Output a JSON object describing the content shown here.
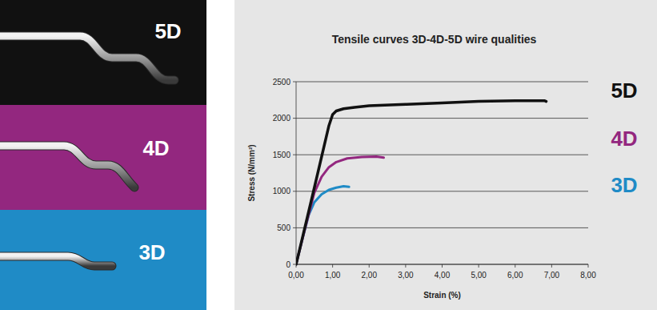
{
  "chart_data": {
    "type": "line",
    "title": "Tensile curves 3D-4D-5D wire qualities",
    "x_label": "Strain (%)",
    "y_label": "Stress (N/mm²)",
    "xlim": [
      0,
      8
    ],
    "ylim": [
      0,
      2500
    ],
    "xticks": [
      {
        "value": 0,
        "label": "0,00"
      },
      {
        "value": 1,
        "label": "1,00"
      },
      {
        "value": 2,
        "label": "2,00"
      },
      {
        "value": 3,
        "label": "3,00"
      },
      {
        "value": 4,
        "label": "4,00"
      },
      {
        "value": 5,
        "label": "5,00"
      },
      {
        "value": 6,
        "label": "6,00"
      },
      {
        "value": 7,
        "label": "7,00"
      },
      {
        "value": 8,
        "label": "8,00"
      }
    ],
    "yticks": [
      0,
      500,
      1000,
      1500,
      2000,
      2500
    ],
    "grid": true,
    "legend": "right",
    "series": [
      {
        "name": "5D",
        "color": "#111111",
        "x": [
          0,
          0.5,
          0.9,
          1.0,
          1.1,
          1.3,
          1.6,
          2.0,
          3.0,
          4.0,
          5.0,
          6.0,
          6.8,
          6.85
        ],
        "values": [
          0,
          1050,
          1900,
          2050,
          2100,
          2130,
          2150,
          2170,
          2190,
          2210,
          2230,
          2240,
          2240,
          2230
        ]
      },
      {
        "name": "4D",
        "color": "#93277f",
        "x": [
          0,
          0.25,
          0.5,
          0.7,
          0.9,
          1.1,
          1.4,
          1.8,
          2.2,
          2.4
        ],
        "values": [
          0,
          500,
          980,
          1200,
          1330,
          1400,
          1450,
          1470,
          1475,
          1460
        ]
      },
      {
        "name": "3D",
        "color": "#1f8bc6",
        "x": [
          0,
          0.2,
          0.35,
          0.5,
          0.7,
          0.9,
          1.1,
          1.3,
          1.45
        ],
        "values": [
          0,
          400,
          680,
          850,
          960,
          1020,
          1050,
          1070,
          1060
        ]
      }
    ]
  }
}
